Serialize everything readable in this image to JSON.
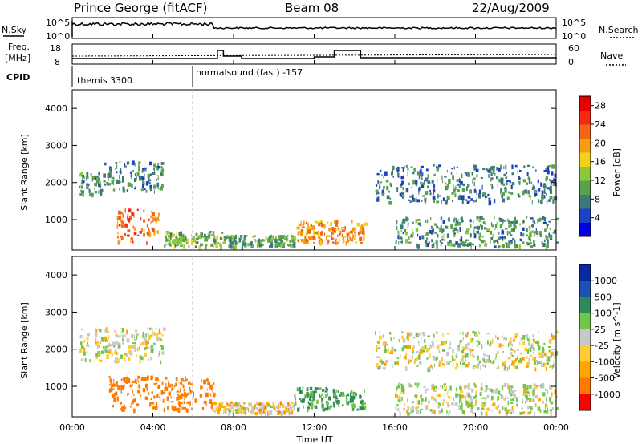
{
  "header": {
    "station": "Prince George (fitACF)",
    "beam": "Beam 08",
    "date": "22/Aug/2009"
  },
  "noise_panel": {
    "left_label": "N.Sky",
    "right_label": "N.Search",
    "left_ticks": [
      "10^5",
      "10^0"
    ],
    "right_ticks": [
      "10^5",
      "10^0"
    ]
  },
  "freq_panel": {
    "left_label_1": "Freq.",
    "left_label_2": "[MHz]",
    "right_label": "Nave",
    "left_ticks": [
      "18",
      "8"
    ],
    "right_ticks": [
      "60",
      "0"
    ]
  },
  "cpid_panel": {
    "label": "CPID",
    "segments": [
      {
        "start_hour": 0,
        "name": "themis 3300"
      },
      {
        "start_hour": 6,
        "name": "normalsound (fast) -157"
      }
    ]
  },
  "x_axis": {
    "label": "Time UT",
    "ticks": [
      "00:00",
      "04:00",
      "08:00",
      "12:00",
      "16:00",
      "20:00",
      "00:00"
    ]
  },
  "colors": {
    "power_scale": [
      "#0000e6",
      "#1e3fc8",
      "#3c7a7a",
      "#5aa050",
      "#8cc83c",
      "#f0d21e",
      "#f59b14",
      "#f56414",
      "#f52814",
      "#e60000"
    ],
    "velocity_scale": [
      "#ff0000",
      "#ff7a00",
      "#ffa500",
      "#ffcc33",
      "#c8c8c8",
      "#6fc64a",
      "#2e8b57",
      "#1e50b4",
      "#0a28a0"
    ]
  },
  "chart_data": [
    {
      "type": "heatmap",
      "title": "Power",
      "xlabel": "Time UT",
      "ylabel": "Slant Range [km]",
      "xlim": [
        0,
        24
      ],
      "ylim": [
        180,
        4500
      ],
      "y_ticks": [
        1000,
        2000,
        3000,
        4000
      ],
      "colorbar": {
        "label": "Power [dB]",
        "unit": "dB",
        "range": [
          0,
          30
        ],
        "ticks": [
          4,
          8,
          12,
          16,
          20,
          24,
          28
        ]
      },
      "regions": [
        {
          "t_start": 0.3,
          "t_end": 1.5,
          "r_start": 1700,
          "r_end": 2300,
          "level": 9
        },
        {
          "t_start": 1.5,
          "t_end": 4.5,
          "r_start": 1800,
          "r_end": 2600,
          "level": 8
        },
        {
          "t_start": 2.2,
          "t_end": 4.3,
          "r_start": 400,
          "r_end": 1300,
          "level": 22
        },
        {
          "t_start": 4.5,
          "t_end": 7.5,
          "r_start": 300,
          "r_end": 700,
          "level": 12
        },
        {
          "t_start": 7.5,
          "t_end": 11.0,
          "r_start": 300,
          "r_end": 600,
          "level": 10
        },
        {
          "t_start": 11.0,
          "t_end": 14.5,
          "r_start": 400,
          "r_end": 1000,
          "level": 20
        },
        {
          "t_start": 16.0,
          "t_end": 24.0,
          "r_start": 300,
          "r_end": 1100,
          "level": 9
        },
        {
          "t_start": 15.0,
          "t_end": 24.0,
          "r_start": 1500,
          "r_end": 2500,
          "level": 8
        }
      ]
    },
    {
      "type": "heatmap",
      "title": "Velocity",
      "xlabel": "Time UT",
      "ylabel": "Slant Range [km]",
      "xlim": [
        0,
        24
      ],
      "ylim": [
        180,
        4500
      ],
      "y_ticks": [
        1000,
        2000,
        3000,
        4000
      ],
      "colorbar": {
        "label": "Velocity [m s^-1]",
        "unit": "m s^-1",
        "ticks": [
          "1000",
          "500",
          "100",
          "25",
          "-25",
          "-100",
          "-500",
          "-1000"
        ]
      },
      "regions": [
        {
          "t_start": 0.3,
          "t_end": 4.5,
          "r_start": 1700,
          "r_end": 2600,
          "level": 0
        },
        {
          "t_start": 1.8,
          "t_end": 7.0,
          "r_start": 400,
          "r_end": 1300,
          "level": -200
        },
        {
          "t_start": 7.0,
          "t_end": 11.0,
          "r_start": 300,
          "r_end": 600,
          "level": -40
        },
        {
          "t_start": 11.0,
          "t_end": 14.5,
          "r_start": 400,
          "r_end": 1000,
          "level": 120
        },
        {
          "t_start": 15.0,
          "t_end": 24.0,
          "r_start": 1500,
          "r_end": 2500,
          "level": 0
        },
        {
          "t_start": 16.0,
          "t_end": 24.0,
          "r_start": 300,
          "r_end": 1100,
          "level": 10
        }
      ]
    }
  ]
}
